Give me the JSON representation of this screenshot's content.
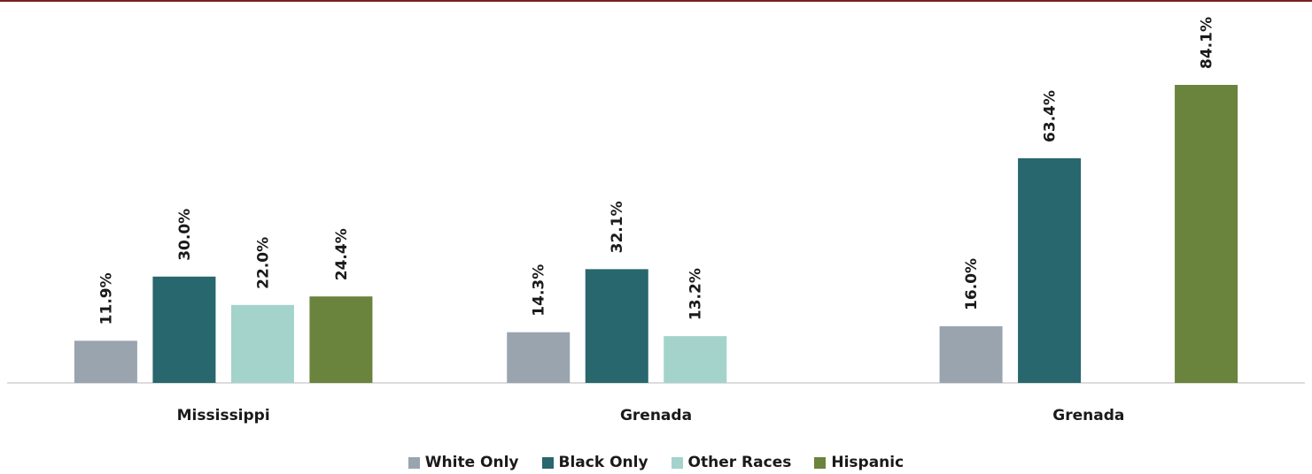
{
  "chart_data": {
    "type": "bar",
    "categories": [
      "Mississippi",
      "Grenada",
      "Grenada"
    ],
    "series": [
      {
        "name": "White Only",
        "color": "#9aa4ae",
        "values": [
          11.9,
          14.3,
          16.0
        ],
        "labels": [
          "11.9%",
          "14.3%",
          "16.0%"
        ]
      },
      {
        "name": "Black Only",
        "color": "#27676d",
        "values": [
          30.0,
          32.1,
          63.4
        ],
        "labels": [
          "30.0%",
          "32.1%",
          "63.4%"
        ]
      },
      {
        "name": "Other Races",
        "color": "#a3d3cb",
        "values": [
          22.0,
          13.2,
          null
        ],
        "labels": [
          "22.0%",
          "13.2%",
          ""
        ]
      },
      {
        "name": "Hispanic",
        "color": "#6a833d",
        "values": [
          24.4,
          null,
          84.1
        ],
        "labels": [
          "24.4%",
          "",
          "84.1%"
        ]
      }
    ],
    "ylim": [
      0,
      90
    ],
    "grid": false,
    "legend_position": "bottom",
    "accent_line_color": "#7a1f24",
    "axis_color": "#d0d0d0"
  }
}
